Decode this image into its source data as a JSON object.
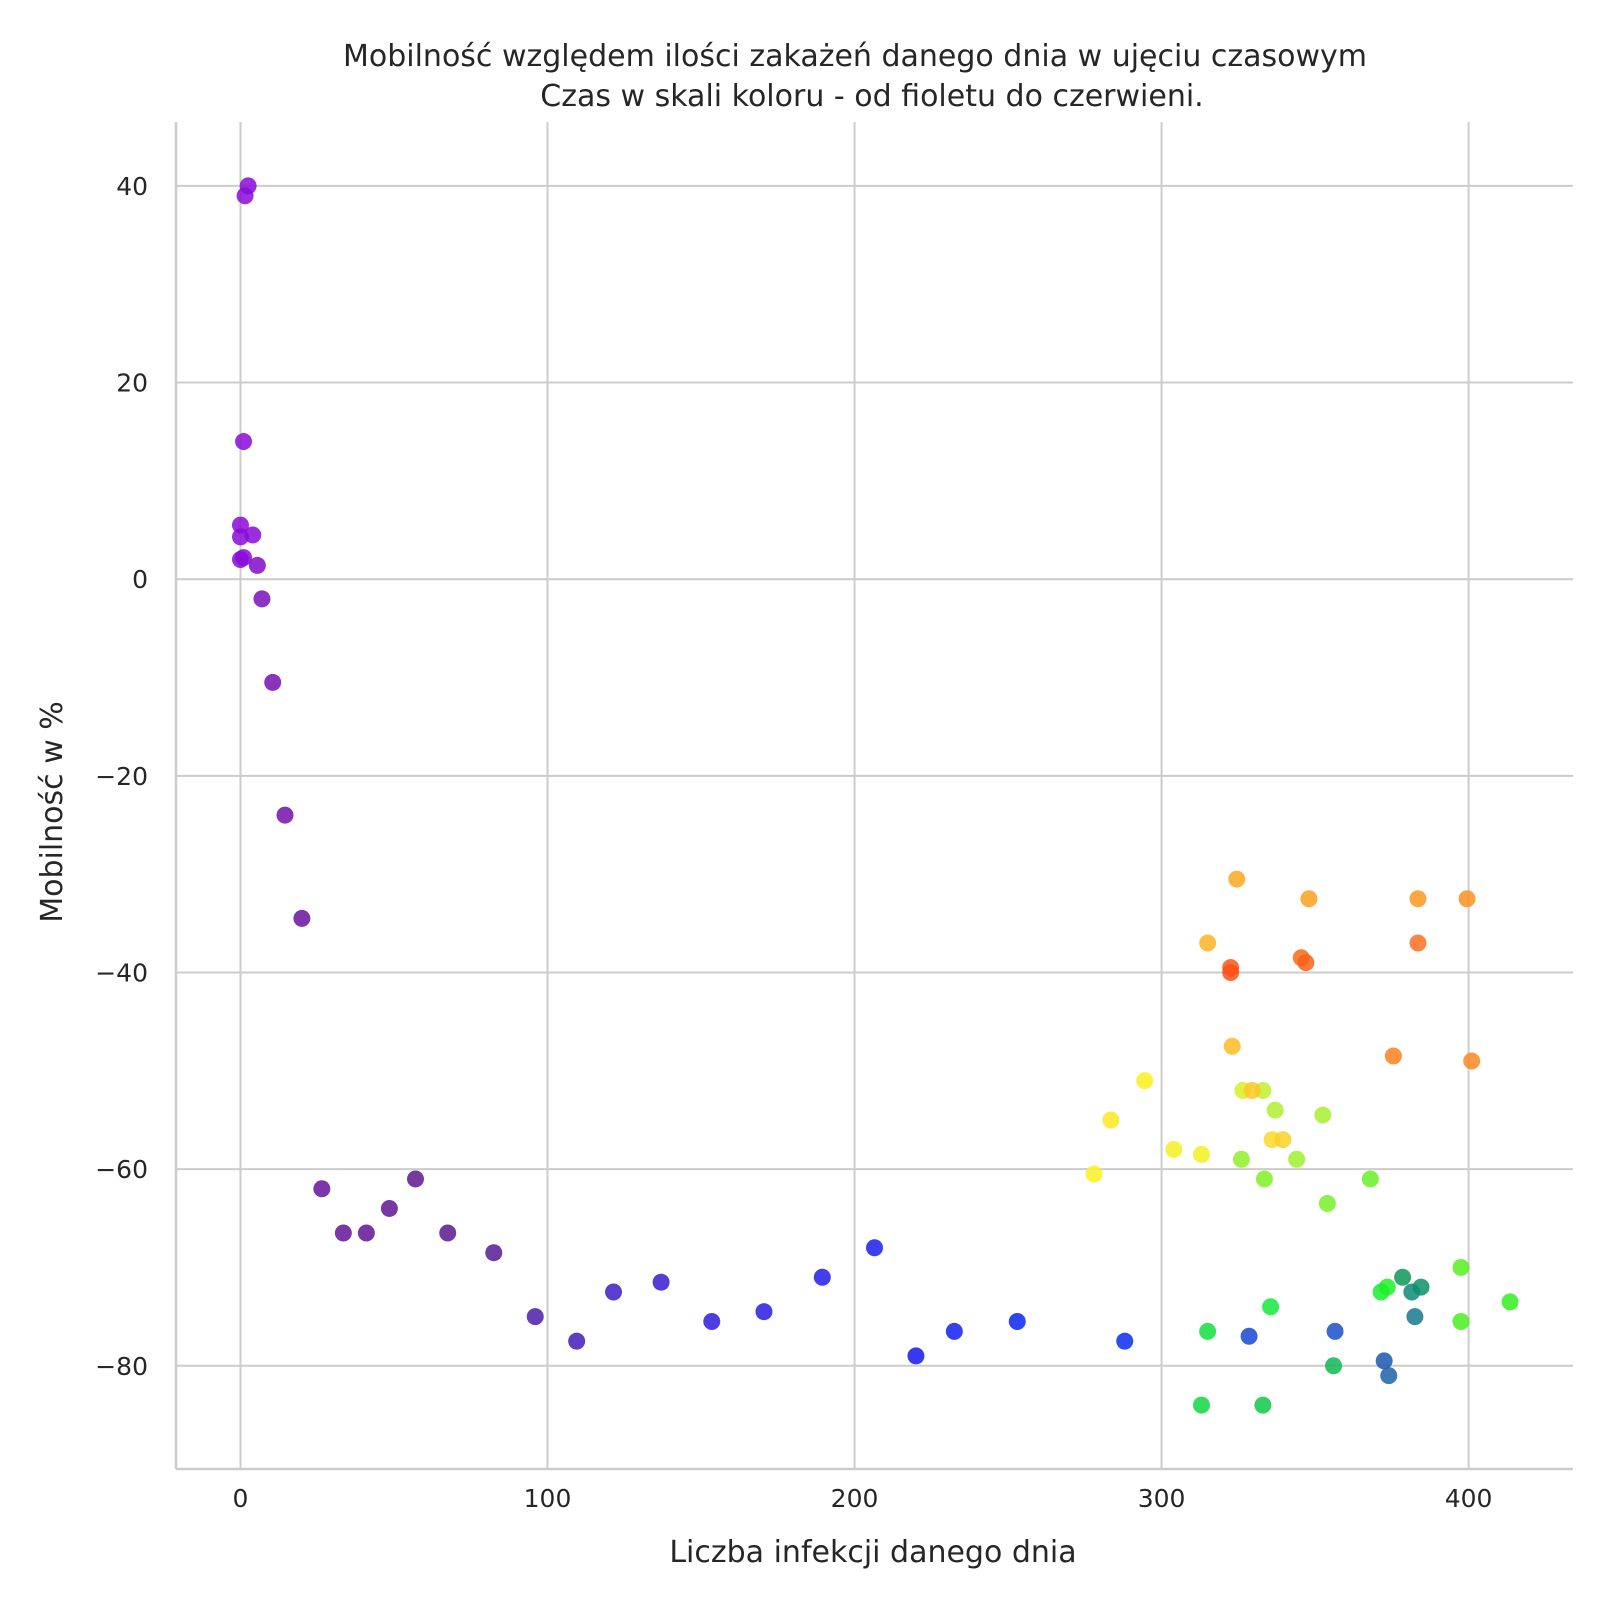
{
  "chart_data": {
    "type": "scatter",
    "title": "Mobilność względem ilości zakażeń danego dnia w ujęciu czasowym",
    "subtitle": "Czas w skali koloru - od fioletu do czerwieni.",
    "xlabel": "Liczba infekcji danego dnia",
    "ylabel": "Mobilność w %",
    "xlim": [
      -21,
      434
    ],
    "ylim": [
      -90.5,
      46.5
    ],
    "xticks": [
      0,
      100,
      200,
      300,
      400
    ],
    "yticks": [
      40,
      20,
      0,
      -20,
      -40,
      -60,
      -80
    ],
    "grid": true,
    "color_scale": "time: violet (earliest) to red (latest)",
    "points": [
      {
        "x": 2.5,
        "y": 40.0,
        "color": "#8a0bd8"
      },
      {
        "x": 1.5,
        "y": 39.0,
        "color": "#8a0bd8"
      },
      {
        "x": 1.0,
        "y": 14.0,
        "color": "#8a0bd8"
      },
      {
        "x": 0.0,
        "y": 5.5,
        "color": "#8a0bd8"
      },
      {
        "x": 0.0,
        "y": 4.3,
        "color": "#8a0bd8"
      },
      {
        "x": 4.0,
        "y": 4.5,
        "color": "#8a0bd8"
      },
      {
        "x": 1.0,
        "y": 2.2,
        "color": "#8a0bd8"
      },
      {
        "x": 0.0,
        "y": 2.0,
        "color": "#8a0bd8"
      },
      {
        "x": 5.5,
        "y": 1.4,
        "color": "#8009c8"
      },
      {
        "x": 7.0,
        "y": -2.0,
        "color": "#7a10b8"
      },
      {
        "x": 10.5,
        "y": -10.5,
        "color": "#7510b0"
      },
      {
        "x": 14.5,
        "y": -24.0,
        "color": "#7012a8"
      },
      {
        "x": 20.0,
        "y": -34.5,
        "color": "#6a12a0"
      },
      {
        "x": 26.5,
        "y": -62.0,
        "color": "#66129c"
      },
      {
        "x": 33.5,
        "y": -66.5,
        "color": "#641398"
      },
      {
        "x": 41.0,
        "y": -66.5,
        "color": "#621495"
      },
      {
        "x": 48.5,
        "y": -64.0,
        "color": "#601592"
      },
      {
        "x": 57.0,
        "y": -61.0,
        "color": "#5e168f"
      },
      {
        "x": 67.5,
        "y": -66.5,
        "color": "#5b188f"
      },
      {
        "x": 82.5,
        "y": -68.5,
        "color": "#561a94"
      },
      {
        "x": 96.0,
        "y": -75.0,
        "color": "#4c1ca8"
      },
      {
        "x": 109.5,
        "y": -77.5,
        "color": "#441cb8"
      },
      {
        "x": 121.5,
        "y": -72.5,
        "color": "#3d1cc4"
      },
      {
        "x": 137.0,
        "y": -71.5,
        "color": "#361cd0"
      },
      {
        "x": 153.5,
        "y": -75.5,
        "color": "#2f1cdc"
      },
      {
        "x": 170.5,
        "y": -74.5,
        "color": "#281ce4"
      },
      {
        "x": 189.5,
        "y": -71.0,
        "color": "#201ce8"
      },
      {
        "x": 206.5,
        "y": -68.0,
        "color": "#1a1ced"
      },
      {
        "x": 220.0,
        "y": -79.0,
        "color": "#1418f0"
      },
      {
        "x": 232.5,
        "y": -76.5,
        "color": "#1020f0"
      },
      {
        "x": 253.0,
        "y": -75.5,
        "color": "#0c24f0"
      },
      {
        "x": 288.0,
        "y": -77.5,
        "color": "#0a2cf0"
      },
      {
        "x": 328.5,
        "y": -77.0,
        "color": "#1848d0"
      },
      {
        "x": 356.5,
        "y": -76.5,
        "color": "#1a50c8"
      },
      {
        "x": 372.5,
        "y": -79.5,
        "color": "#1c58b0"
      },
      {
        "x": 374.0,
        "y": -81.0,
        "color": "#1c60a8"
      },
      {
        "x": 382.5,
        "y": -75.0,
        "color": "#187890"
      },
      {
        "x": 381.5,
        "y": -72.5,
        "color": "#108a78"
      },
      {
        "x": 384.5,
        "y": -72.0,
        "color": "#0e9068"
      },
      {
        "x": 378.5,
        "y": -71.0,
        "color": "#0c9858"
      },
      {
        "x": 356.0,
        "y": -80.0,
        "color": "#10b850"
      },
      {
        "x": 333.0,
        "y": -84.0,
        "color": "#10c848"
      },
      {
        "x": 313.0,
        "y": -84.0,
        "color": "#10d840"
      },
      {
        "x": 315.0,
        "y": -76.5,
        "color": "#10e040"
      },
      {
        "x": 335.5,
        "y": -74.0,
        "color": "#14e83c"
      },
      {
        "x": 371.5,
        "y": -72.5,
        "color": "#18ee30"
      },
      {
        "x": 373.5,
        "y": -72.0,
        "color": "#1ef028"
      },
      {
        "x": 413.5,
        "y": -73.5,
        "color": "#30f020"
      },
      {
        "x": 397.5,
        "y": -75.5,
        "color": "#48f020"
      },
      {
        "x": 397.5,
        "y": -70.0,
        "color": "#58f020"
      },
      {
        "x": 368.0,
        "y": -61.0,
        "color": "#68f028"
      },
      {
        "x": 354.0,
        "y": -63.5,
        "color": "#78f028"
      },
      {
        "x": 333.5,
        "y": -61.0,
        "color": "#80f028"
      },
      {
        "x": 326.0,
        "y": -59.0,
        "color": "#90f028"
      },
      {
        "x": 344.0,
        "y": -59.0,
        "color": "#a0f030"
      },
      {
        "x": 352.5,
        "y": -54.5,
        "color": "#a8f030"
      },
      {
        "x": 337.0,
        "y": -54.0,
        "color": "#b0f030"
      },
      {
        "x": 333.0,
        "y": -52.0,
        "color": "#c0f030"
      },
      {
        "x": 326.5,
        "y": -52.0,
        "color": "#d8f020"
      },
      {
        "x": 313.0,
        "y": -58.5,
        "color": "#f0f020"
      },
      {
        "x": 304.0,
        "y": -58.0,
        "color": "#f5f020"
      },
      {
        "x": 278.0,
        "y": -60.5,
        "color": "#fcf020"
      },
      {
        "x": 283.5,
        "y": -55.0,
        "color": "#fce820"
      },
      {
        "x": 294.5,
        "y": -51.0,
        "color": "#fcee20"
      },
      {
        "x": 336.0,
        "y": -57.0,
        "color": "#fcd828"
      },
      {
        "x": 339.5,
        "y": -57.0,
        "color": "#fcd028"
      },
      {
        "x": 329.5,
        "y": -52.0,
        "color": "#fcc828"
      },
      {
        "x": 323.0,
        "y": -47.5,
        "color": "#fcbc24"
      },
      {
        "x": 315.0,
        "y": -37.0,
        "color": "#fcb424"
      },
      {
        "x": 324.5,
        "y": -30.5,
        "color": "#fca820"
      },
      {
        "x": 348.0,
        "y": -32.5,
        "color": "#fca020"
      },
      {
        "x": 383.5,
        "y": -32.5,
        "color": "#fc9820"
      },
      {
        "x": 399.5,
        "y": -32.5,
        "color": "#fc9020"
      },
      {
        "x": 401.0,
        "y": -49.0,
        "color": "#fc8820"
      },
      {
        "x": 375.5,
        "y": -48.5,
        "color": "#fc8020"
      },
      {
        "x": 383.5,
        "y": -37.0,
        "color": "#fc7020"
      },
      {
        "x": 345.5,
        "y": -38.5,
        "color": "#fc6818"
      },
      {
        "x": 347.0,
        "y": -39.0,
        "color": "#fc6018"
      },
      {
        "x": 322.5,
        "y": -39.5,
        "color": "#fc5818"
      },
      {
        "x": 322.5,
        "y": -40.0,
        "color": "#fc5018"
      }
    ]
  }
}
